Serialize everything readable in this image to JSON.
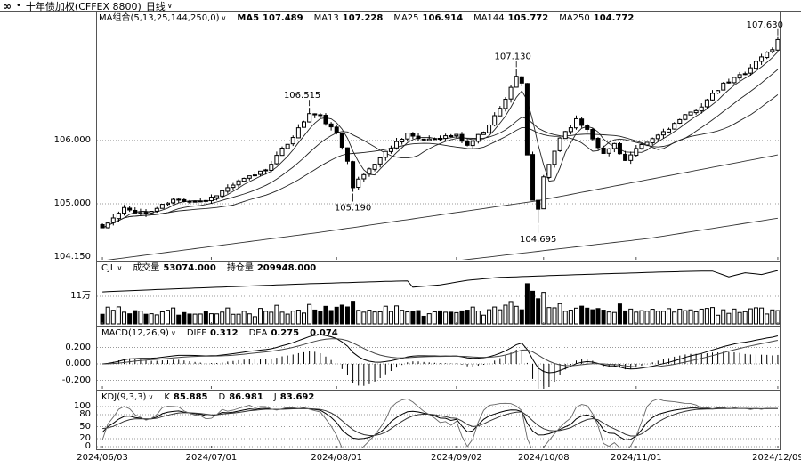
{
  "header": {
    "link_icon": "∞",
    "bullet": "•",
    "title": "十年债加权(CFFEX 8800)",
    "period": "日线",
    "caret": "∨"
  },
  "panels": {
    "main": {
      "indicator": "MA组合(5,13,25,144,250,0)",
      "caret": "∨",
      "legend": [
        {
          "label": "MA5",
          "value": "107.489",
          "bold": true
        },
        {
          "label": "MA13",
          "value": "107.228"
        },
        {
          "label": "MA25",
          "value": "106.914"
        },
        {
          "label": "MA144",
          "value": "105.772"
        },
        {
          "label": "MA250",
          "value": "104.772"
        }
      ],
      "y_ticks": [
        {
          "label": "106.000",
          "price": 106.0
        },
        {
          "label": "105.000",
          "price": 105.0
        }
      ],
      "min_label": "104.150"
    },
    "volume": {
      "indicator": "CJL",
      "caret": "∨",
      "fields": [
        {
          "label": "成交量",
          "value": "53074.000"
        },
        {
          "label": "持仓量",
          "value": "209948.000"
        }
      ],
      "y_ticks": [
        {
          "label": "11万",
          "value": 11
        }
      ]
    },
    "macd": {
      "indicator": "MACD(12,26,9)",
      "caret": "∨",
      "fields": [
        {
          "label": "DIFF",
          "value": "0.312"
        },
        {
          "label": "DEA",
          "value": "0.275"
        },
        {
          "label": "",
          "value": "0.074"
        }
      ],
      "y_ticks": [
        {
          "label": "0.200",
          "value": 0.2
        },
        {
          "label": "0.000",
          "value": 0.0
        },
        {
          "label": "-0.200",
          "value": -0.2
        }
      ]
    },
    "kdj": {
      "indicator": "KDJ(9,3,3)",
      "caret": "∨",
      "fields": [
        {
          "label": "K",
          "value": "85.885"
        },
        {
          "label": "D",
          "value": "86.981"
        },
        {
          "label": "J",
          "value": "83.692"
        }
      ],
      "y_ticks": [
        {
          "label": "100",
          "value": 100
        },
        {
          "label": "80",
          "value": 80
        },
        {
          "label": "50",
          "value": 50
        },
        {
          "label": "20",
          "value": 20
        },
        {
          "label": "0",
          "value": 0
        }
      ]
    }
  },
  "x_axis": {
    "labels": [
      {
        "text": "2024/06/03",
        "day": 0
      },
      {
        "text": "2024/07/01",
        "day": 20
      },
      {
        "text": "2024/08/01",
        "day": 43
      },
      {
        "text": "2024/09/02",
        "day": 65
      },
      {
        "text": "2024/10/08",
        "day": 81
      },
      {
        "text": "2024/11/01",
        "day": 98
      },
      {
        "text": "2024/12/09",
        "day": 124
      }
    ]
  },
  "colors": {
    "fg": "#000000",
    "grid": "#999999",
    "frame": "#555555",
    "up_fill": "#ffffff",
    "down_fill": "#000000"
  },
  "chart_data": {
    "type": "candlestick",
    "symbol": "十年债加权(CFFEX 8800)",
    "period": "日线",
    "days": 125,
    "seed": 11,
    "noise": 0.06,
    "price_range": [
      104.13,
      107.88
    ],
    "close_keyframes": [
      [
        0,
        104.62
      ],
      [
        4,
        104.92
      ],
      [
        8,
        104.84
      ],
      [
        13,
        105.06
      ],
      [
        19,
        105.05
      ],
      [
        24,
        105.3
      ],
      [
        30,
        105.55
      ],
      [
        34,
        105.95
      ],
      [
        38,
        106.42
      ],
      [
        40,
        106.38
      ],
      [
        43,
        106.1
      ],
      [
        45,
        105.7
      ],
      [
        46,
        105.28
      ],
      [
        49,
        105.55
      ],
      [
        53,
        105.9
      ],
      [
        56,
        106.12
      ],
      [
        58,
        106.0
      ],
      [
        62,
        106.05
      ],
      [
        65,
        106.08
      ],
      [
        67,
        105.92
      ],
      [
        70,
        106.15
      ],
      [
        73,
        106.5
      ],
      [
        76,
        107.02
      ],
      [
        77,
        106.88
      ],
      [
        78,
        105.75
      ],
      [
        79,
        105.05
      ],
      [
        80,
        104.92
      ],
      [
        81,
        105.4
      ],
      [
        84,
        106.05
      ],
      [
        87,
        106.32
      ],
      [
        89,
        106.18
      ],
      [
        92,
        105.78
      ],
      [
        94,
        105.95
      ],
      [
        96,
        105.68
      ],
      [
        98,
        105.85
      ],
      [
        102,
        106.08
      ],
      [
        106,
        106.32
      ],
      [
        110,
        106.55
      ],
      [
        114,
        106.88
      ],
      [
        118,
        107.08
      ],
      [
        121,
        107.32
      ],
      [
        123,
        107.45
      ],
      [
        124,
        107.58
      ]
    ],
    "annotations": [
      {
        "day": 38,
        "price": 106.515,
        "text": "106.515",
        "type": "high",
        "anchor": "middle",
        "dx": -8
      },
      {
        "day": 46,
        "price": 105.19,
        "text": "105.190",
        "type": "low",
        "anchor": "middle",
        "dx": 0
      },
      {
        "day": 76,
        "price": 107.13,
        "text": "107.130",
        "type": "high",
        "anchor": "middle",
        "dx": -4
      },
      {
        "day": 80,
        "price": 104.695,
        "text": "104.695",
        "type": "low",
        "anchor": "middle",
        "dx": 0
      },
      {
        "day": 124,
        "price": 107.63,
        "text": "107.630",
        "type": "high",
        "anchor": "end",
        "dx": 6
      }
    ],
    "ma_windows": [
      5,
      13,
      25
    ],
    "ma_long": [
      {
        "name": "MA144",
        "keyframes": [
          [
            0,
            104.1
          ],
          [
            40,
            104.55
          ],
          [
            80,
            105.05
          ],
          [
            124,
            105.772
          ]
        ]
      },
      {
        "name": "MA250",
        "keyframes": [
          [
            0,
            103.45
          ],
          [
            60,
            104.05
          ],
          [
            100,
            104.45
          ],
          [
            124,
            104.772
          ]
        ]
      }
    ],
    "volume": {
      "unit": "万",
      "base": 2.6,
      "spikes": [
        [
          46,
          9.0
        ],
        [
          78,
          16.0
        ],
        [
          79,
          13.0
        ],
        [
          80,
          10.0
        ]
      ],
      "last": 5.3,
      "axis_line": 11
    },
    "open_interest_keyframes": [
      [
        0,
        17.3
      ],
      [
        10,
        17.7
      ],
      [
        24,
        18.2
      ],
      [
        38,
        18.7
      ],
      [
        52,
        19.1
      ],
      [
        56,
        19.2
      ],
      [
        57,
        18.1
      ],
      [
        62,
        18.5
      ],
      [
        67,
        19.3
      ],
      [
        73,
        19.8
      ],
      [
        79,
        20.0
      ],
      [
        85,
        20.2
      ],
      [
        95,
        20.5
      ],
      [
        102,
        20.7
      ],
      [
        108,
        20.85
      ],
      [
        112,
        20.9
      ],
      [
        115,
        19.9
      ],
      [
        118,
        20.6
      ],
      [
        121,
        20.3
      ],
      [
        124,
        20.99
      ]
    ],
    "macd_params": {
      "fast": 12,
      "slow": 26,
      "signal": 9
    },
    "kdj_params": {
      "n": 9,
      "m1": 3,
      "m2": 3
    }
  }
}
